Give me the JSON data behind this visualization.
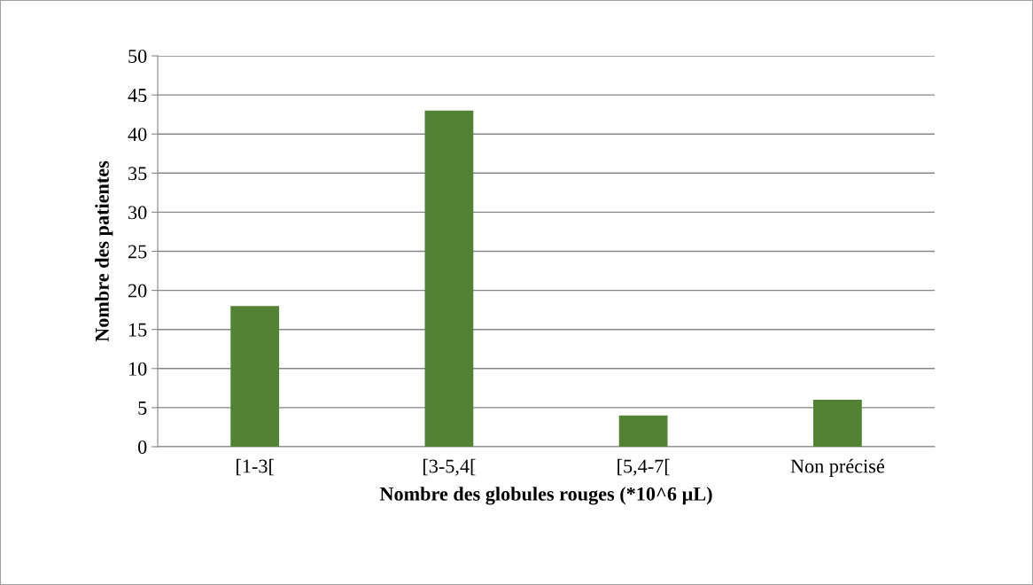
{
  "chart_data": {
    "type": "bar",
    "categories": [
      "[1-3[",
      "[3-5,4[",
      "[5,4-7[",
      "Non précisé"
    ],
    "values": [
      18,
      43,
      4,
      6
    ],
    "color": "#548235",
    "xlabel": "Nombre des globules rouges (*10^6 µL)",
    "ylabel": "Nombre des patientes",
    "ylim": [
      0,
      50
    ],
    "yticks": [
      0,
      5,
      10,
      15,
      20,
      25,
      30,
      35,
      40,
      45,
      50
    ],
    "grid": "y"
  }
}
